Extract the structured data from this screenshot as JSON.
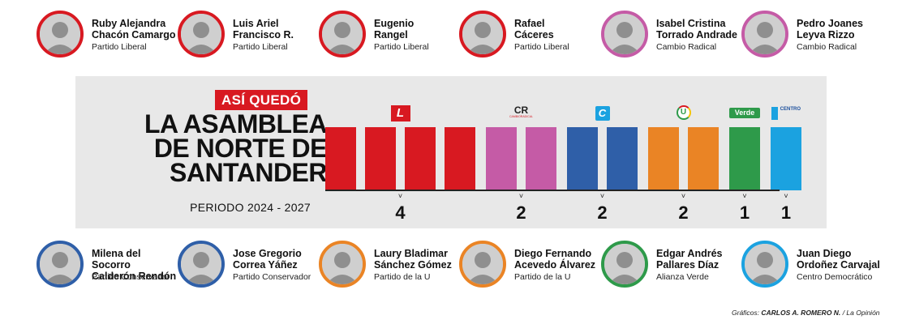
{
  "colors": {
    "liberal": "#d81921",
    "cambio_radical": "#c55ba6",
    "conservador": "#2f5fa8",
    "partido_u": "#ea8425",
    "alianza_verde": "#2e9a4a",
    "centro_democratico": "#1ba2e0"
  },
  "top_row": [
    {
      "name": "Ruby Alejandra\nChacón Camargo",
      "party": "Partido Liberal",
      "ring": "#d81921"
    },
    {
      "name": "Luis Ariel\nFrancisco R.",
      "party": "Partido Liberal",
      "ring": "#d81921"
    },
    {
      "name": "Eugenio\nRangel",
      "party": "Partido Liberal",
      "ring": "#d81921"
    },
    {
      "name": "Rafael\nCáceres",
      "party": "Partido Liberal",
      "ring": "#d81921"
    },
    {
      "name": "Isabel Cristina\nTorrado Andrade",
      "party": "Cambio Radical",
      "ring": "#c55ba6"
    },
    {
      "name": "Pedro Joanes\nLeyva Rizzo",
      "party": "Cambio Radical",
      "ring": "#c55ba6"
    }
  ],
  "bottom_row": [
    {
      "name": "Milena del Socorro\nCalderón Rendón",
      "party": "Partido Conservador",
      "ring": "#2f5fa8"
    },
    {
      "name": "Jose Gregorio\nCorrea Yáñez",
      "party": "Partido Conservador",
      "ring": "#2f5fa8"
    },
    {
      "name": "Laury Bladimar\nSánchez Gómez",
      "party": "Partido de la U",
      "ring": "#ea8425"
    },
    {
      "name": "Diego Fernando\nAcevedo Álvarez",
      "party": "Partido de la U",
      "ring": "#ea8425"
    },
    {
      "name": "Edgar Andrés\nPallares Díaz",
      "party": "Alianza Verde",
      "ring": "#2e9a4a"
    },
    {
      "name": "Juan Diego\nOrdoñez Carvajal",
      "party": "Centro Democrático",
      "ring": "#1ba2e0"
    }
  ],
  "panel": {
    "badge": "ASÍ QUEDÓ",
    "title": "LA ASAMBLEA\nDE NORTE DE\nSANTANDER",
    "period": "PERIODO 2024 - 2027"
  },
  "seats": [
    {
      "party": "Partido Liberal",
      "count": "4",
      "color": "#d81921",
      "logo_text": "L",
      "logo_icon": "liberal-logo-icon"
    },
    {
      "party": "Cambio Radical",
      "count": "2",
      "color": "#c55ba6",
      "logo_text": "CR",
      "logo_sub": "CAMBIORADICAL",
      "logo_icon": "cambio-radical-logo-icon"
    },
    {
      "party": "Partido Conservador",
      "count": "2",
      "color": "#2f5fa8",
      "logo_text": "C",
      "logo_icon": "conservador-logo-icon"
    },
    {
      "party": "Partido de la U",
      "count": "2",
      "color": "#ea8425",
      "logo_text": "U",
      "logo_icon": "partido-u-logo-icon"
    },
    {
      "party": "Alianza Verde",
      "count": "1",
      "color": "#2e9a4a",
      "logo_text": "Verde",
      "logo_icon": "alianza-verde-logo-icon"
    },
    {
      "party": "Centro Democrático",
      "count": "1",
      "color": "#1ba2e0",
      "logo_text": "CENTRO",
      "logo_icon": "centro-democratico-logo-icon"
    }
  ],
  "credit": {
    "label": "Gráficos:",
    "author": "CARLOS A. ROMERO N.",
    "source": "/ La Opinión"
  }
}
